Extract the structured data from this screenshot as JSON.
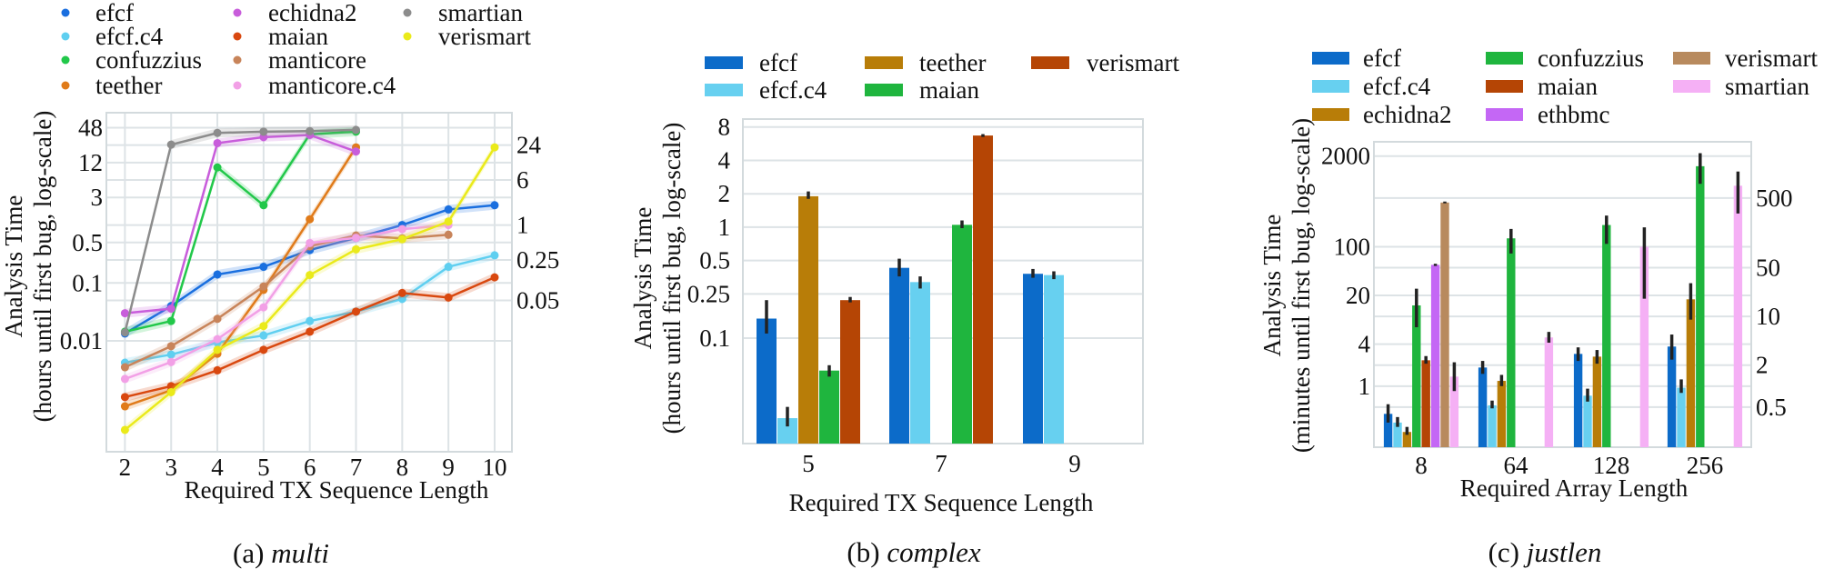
{
  "chart_data": [
    {
      "type": "line",
      "caption_label": "(a)",
      "caption_name": "multi",
      "xlabel": "Required TX Sequence Length",
      "ylabel_line1": "Analysis Time",
      "ylabel_line2": "(hours until first bug, log-scale)",
      "yscale": "log",
      "ylim": [
        0.00012,
        90
      ],
      "grid": true,
      "legend_placement": "top",
      "x": [
        2,
        3,
        4,
        5,
        6,
        7,
        8,
        9,
        10
      ],
      "xtick_labels": [
        "2",
        "3",
        "4",
        "5",
        "6",
        "7",
        "8",
        "9",
        "10"
      ],
      "yticks": [
        48,
        24,
        12,
        6,
        3,
        1,
        0.5,
        0.25,
        0.1,
        0.05,
        0.01
      ],
      "ytick_labels": [
        "48",
        "24",
        "12",
        "6",
        "3",
        "1",
        "0.5",
        "0.25",
        "0.1",
        "0.05",
        "0.01"
      ],
      "series": [
        {
          "name": "efcf",
          "color": "#1a6fdf",
          "values": [
            0.0134,
            0.04,
            0.14,
            0.19,
            0.37,
            0.6,
            1.0,
            1.86,
            2.2
          ]
        },
        {
          "name": "efcf.c4",
          "color": "#5fcff0",
          "values": [
            0.0042,
            0.0058,
            0.0093,
            0.0124,
            0.022,
            0.032,
            0.053,
            0.19,
            0.3
          ]
        },
        {
          "name": "confuzzius",
          "color": "#22c84a",
          "values": [
            0.0144,
            0.022,
            9.9,
            2.2,
            37,
            41,
            null,
            null,
            null
          ]
        },
        {
          "name": "teether",
          "color": "#e07b1a",
          "values": [
            0.00074,
            0.0014,
            0.006,
            0.076,
            1.26,
            22,
            null,
            null,
            null
          ]
        },
        {
          "name": "echidna2",
          "color": "#c85ddb",
          "values": [
            0.03,
            0.036,
            26,
            33,
            36,
            18.6,
            null,
            null,
            null
          ]
        },
        {
          "name": "maian",
          "color": "#d9480f",
          "values": [
            0.00107,
            0.00165,
            0.0031,
            0.007,
            0.0144,
            0.032,
            0.067,
            0.056,
            0.125
          ]
        },
        {
          "name": "manticore",
          "color": "#c8845a",
          "values": [
            0.0035,
            0.0081,
            0.024,
            0.087,
            0.43,
            0.66,
            0.59,
            0.68,
            null
          ]
        },
        {
          "name": "manticore.c4",
          "color": "#f2a0e6",
          "values": [
            0.0022,
            0.0043,
            0.0107,
            0.038,
            0.49,
            0.6,
            0.85,
            1.0,
            null
          ]
        },
        {
          "name": "smartian",
          "color": "#8c8c8c",
          "values": [
            0.014,
            24.5,
            39,
            41,
            42,
            44,
            null,
            null,
            null
          ]
        },
        {
          "name": "verismart",
          "color": "#eaea1a",
          "values": [
            0.00029,
            0.0013,
            0.007,
            0.018,
            0.137,
            0.38,
            0.57,
            1.15,
            22
          ]
        }
      ]
    },
    {
      "type": "bar",
      "caption_label": "(b)",
      "caption_name": "complex",
      "xlabel": "Required TX Sequence Length",
      "ylabel_line1": "Analysis Time",
      "ylabel_line2": "(hours until first bug, log-scale)",
      "yscale": "log",
      "ylim": [
        0.0112,
        9.4
      ],
      "grid": true,
      "legend_placement": "top",
      "categories": [
        "5",
        "7",
        "9"
      ],
      "yticks": [
        8,
        4,
        2,
        1,
        0.5,
        0.25,
        0.1
      ],
      "ytick_labels": [
        "8",
        "4",
        "2",
        "1",
        "0.5",
        "0.25",
        "0.1"
      ],
      "series": [
        {
          "name": "efcf",
          "color": "#0c6bc9",
          "values": [
            0.15,
            0.43,
            0.38
          ],
          "ci": [
            [
              0.11,
              0.22
            ],
            [
              0.36,
              0.52
            ],
            [
              0.35,
              0.42
            ]
          ]
        },
        {
          "name": "efcf.c4",
          "color": "#67d0f0",
          "values": [
            0.019,
            0.32,
            0.37
          ],
          "ci": [
            [
              0.016,
              0.024
            ],
            [
              0.28,
              0.36
            ],
            [
              0.34,
              0.4
            ]
          ]
        },
        {
          "name": "teether",
          "color": "#b87d08",
          "values": [
            1.9,
            null,
            null
          ],
          "ci": [
            [
              1.8,
              2.1
            ],
            null,
            null
          ]
        },
        {
          "name": "maian",
          "color": "#1fb53e",
          "values": [
            0.051,
            1.05,
            null
          ],
          "ci": [
            [
              0.045,
              0.057
            ],
            [
              0.98,
              1.15
            ],
            null
          ]
        },
        {
          "name": "verismart",
          "color": "#b54505",
          "values": [
            0.22,
            6.7,
            null
          ],
          "ci": [
            [
              0.21,
              0.235
            ],
            [
              6.5,
              6.9
            ],
            null
          ]
        }
      ]
    },
    {
      "type": "bar",
      "caption_label": "(c)",
      "caption_name": "justlen",
      "xlabel": "Required Array Length",
      "ylabel_line1": "Analysis Time",
      "ylabel_line2": "(minutes until first bug, log-scale)",
      "yscale": "log",
      "ylim": [
        0.134,
        3230
      ],
      "grid": true,
      "legend_placement": "top",
      "categories": [
        "8",
        "64",
        "128",
        "256"
      ],
      "yticks": [
        2000,
        500,
        100,
        50,
        20,
        10,
        4,
        2,
        1,
        0.5
      ],
      "ytick_labels": [
        "2000",
        "500",
        "100",
        "50",
        "20",
        "10",
        "4",
        "2",
        "1",
        "0.5"
      ],
      "series": [
        {
          "name": "efcf",
          "color": "#0c6bc9",
          "values": [
            0.4,
            1.85,
            2.9,
            3.7
          ],
          "ci": [
            [
              0.3,
              0.55
            ],
            [
              1.5,
              2.3
            ],
            [
              2.3,
              3.6
            ],
            [
              2.4,
              5.5
            ]
          ]
        },
        {
          "name": "efcf.c4",
          "color": "#67d0f0",
          "values": [
            0.3,
            0.53,
            0.73,
            0.95
          ],
          "ci": [
            [
              0.26,
              0.36
            ],
            [
              0.48,
              0.62
            ],
            [
              0.6,
              0.92
            ],
            [
              0.8,
              1.25
            ]
          ]
        },
        {
          "name": "echidna2",
          "color": "#b87d08",
          "values": [
            0.22,
            1.19,
            2.65,
            17.6
          ],
          "ci": [
            [
              0.2,
              0.26
            ],
            [
              1.0,
              1.45
            ],
            [
              2.1,
              3.3
            ],
            [
              9,
              30
            ]
          ]
        },
        {
          "name": "confuzzius",
          "color": "#1fb53e",
          "values": [
            14.4,
            132,
            205,
            1430
          ],
          "ci": [
            [
              7,
              25
            ],
            [
              80,
              180
            ],
            [
              110,
              280
            ],
            [
              800,
              2200
            ]
          ]
        },
        {
          "name": "maian",
          "color": "#b54505",
          "values": [
            2.35,
            null,
            null,
            null
          ],
          "ci": [
            [
              2.1,
              2.7
            ],
            null,
            null,
            null
          ]
        },
        {
          "name": "ethbmc",
          "color": "#c467f5",
          "values": [
            55,
            null,
            null,
            null
          ],
          "ci": [
            [
              53,
              57
            ],
            null,
            null,
            null
          ]
        },
        {
          "name": "verismart",
          "color": "#b88a5e",
          "values": [
            431,
            null,
            null,
            null
          ],
          "ci": [
            [
              420,
              445
            ],
            null,
            null,
            null
          ]
        },
        {
          "name": "smartian",
          "color": "#f5b0f5",
          "values": [
            1.37,
            5.0,
            100,
            750
          ],
          "ci": [
            [
              0.85,
              2.2
            ],
            [
              4.2,
              6
            ],
            [
              18,
              190
            ],
            [
              300,
              1200
            ]
          ]
        }
      ]
    }
  ]
}
